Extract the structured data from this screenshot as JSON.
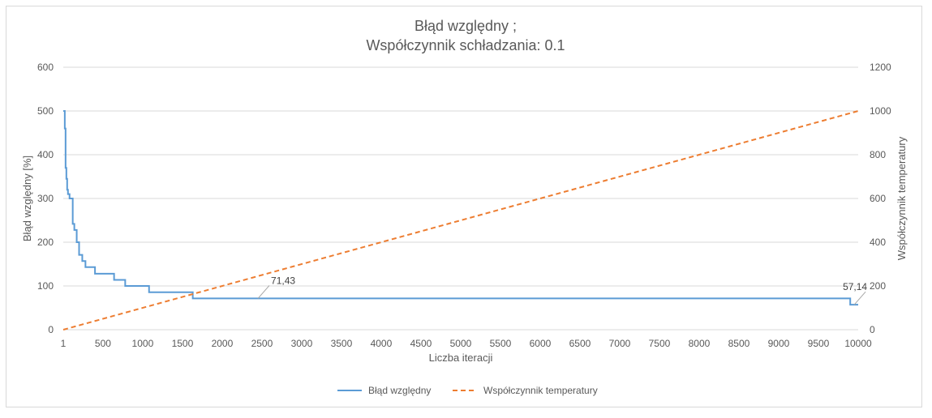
{
  "chart_data": {
    "type": "line",
    "title_line1": "Błąd względny ;",
    "title_line2": "Współczynnik schładzania: 0.1",
    "xlabel": "Liczba iteracji",
    "ylabel_left": "Błąd względny [%]",
    "ylabel_right": "Współczynnik temperatury",
    "xlim": [
      1,
      10000
    ],
    "ylim_left": [
      0,
      600
    ],
    "ylim_right": [
      0,
      1200
    ],
    "x_ticks": [
      "1",
      "500",
      "1000",
      "1500",
      "2000",
      "2500",
      "3000",
      "3500",
      "4000",
      "4500",
      "5000",
      "5500",
      "6000",
      "6500",
      "7000",
      "7500",
      "8000",
      "8500",
      "9000",
      "9500",
      "10000"
    ],
    "y_left_ticks": [
      "0",
      "100",
      "200",
      "300",
      "400",
      "500",
      "600"
    ],
    "y_right_ticks": [
      "0",
      "200",
      "400",
      "600",
      "800",
      "1000",
      "1200"
    ],
    "grid": "horizontal",
    "legend_position": "bottom",
    "series": [
      {
        "name": "Błąd względny",
        "axis": "left",
        "color": "#5b9bd5",
        "style": "solid",
        "x": [
          1,
          20,
          30,
          40,
          50,
          60,
          80,
          100,
          120,
          140,
          170,
          200,
          240,
          280,
          400,
          640,
          780,
          1080,
          1630,
          9900,
          10000
        ],
        "y": [
          500,
          460,
          370,
          345,
          320,
          310,
          300,
          300,
          242,
          228,
          200,
          171,
          157,
          143,
          128,
          114,
          100,
          85.71,
          71.43,
          57.14,
          57.14
        ]
      },
      {
        "name": "Współczynnik temperatury",
        "axis": "right",
        "color": "#ed7d31",
        "style": "dashed",
        "x": [
          1,
          10000
        ],
        "y": [
          0,
          1000
        ]
      }
    ],
    "data_labels": [
      {
        "text": "71,43",
        "x": 2450,
        "y": 71.43
      },
      {
        "text": "57,14",
        "x": 9950,
        "y": 57.14
      }
    ]
  }
}
